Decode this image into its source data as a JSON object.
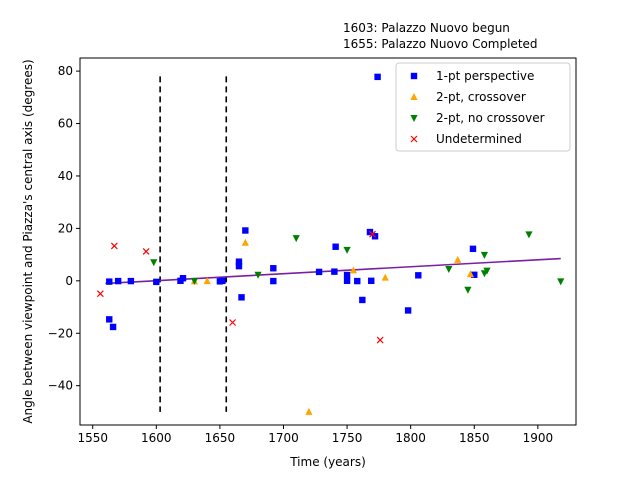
{
  "chart_data": {
    "type": "scatter",
    "annotations": [
      "1603: Palazzo Nuovo begun",
      "1655: Palazzo Nuovo Completed"
    ],
    "xlabel": "Time (years)",
    "ylabel": "Angle between viewpoint and Piazza's central axis (degrees)",
    "xlim": [
      1540,
      1930
    ],
    "ylim": [
      -55,
      85
    ],
    "xticks": [
      1550,
      1600,
      1650,
      1700,
      1750,
      1800,
      1850,
      1900
    ],
    "yticks": [
      -40,
      -20,
      0,
      20,
      40,
      60,
      80
    ],
    "grid": false,
    "legend_position": "top-right",
    "vlines": [
      1603,
      1655
    ],
    "trendline": {
      "x": [
        1560,
        1918
      ],
      "y": [
        -1.0,
        8.5
      ],
      "color": "#7b1fa2"
    },
    "series": [
      {
        "name": "1-pt perspective",
        "marker": "square",
        "color": "#0000ff",
        "points": [
          [
            1563,
            -14.7
          ],
          [
            1563,
            -0.3
          ],
          [
            1566,
            -17.6
          ],
          [
            1570,
            -0.1
          ],
          [
            1580,
            -0.1
          ],
          [
            1600,
            -0.4
          ],
          [
            1619,
            0.0
          ],
          [
            1621,
            1.0
          ],
          [
            1650,
            -0.2
          ],
          [
            1652,
            0.0
          ],
          [
            1665,
            5.6
          ],
          [
            1665,
            7.3
          ],
          [
            1667,
            -6.3
          ],
          [
            1670,
            19.2
          ],
          [
            1692,
            4.8
          ],
          [
            1692,
            -0.1
          ],
          [
            1728,
            3.4
          ],
          [
            1740,
            3.5
          ],
          [
            1741,
            13.0
          ],
          [
            1750,
            0.0
          ],
          [
            1750,
            2.2
          ],
          [
            1758,
            -0.1
          ],
          [
            1762,
            -7.3
          ],
          [
            1768,
            18.6
          ],
          [
            1769,
            0.0
          ],
          [
            1772,
            17.0
          ],
          [
            1774,
            77.8
          ],
          [
            1798,
            -11.3
          ],
          [
            1806,
            2.1
          ],
          [
            1849,
            12.2
          ],
          [
            1850,
            2.3
          ]
        ]
      },
      {
        "name": "2-pt, crossover",
        "marker": "triangle-up",
        "color": "#ffa500",
        "points": [
          [
            1630,
            -0.2
          ],
          [
            1640,
            -0.1
          ],
          [
            1670,
            14.5
          ],
          [
            1720,
            -50.0
          ],
          [
            1755,
            4.0
          ],
          [
            1780,
            1.2
          ],
          [
            1837,
            8.0
          ],
          [
            1847,
            2.5
          ]
        ]
      },
      {
        "name": "2-pt, no crossover",
        "marker": "triangle-down",
        "color": "#008000",
        "points": [
          [
            1598,
            7.1
          ],
          [
            1630,
            0.0
          ],
          [
            1680,
            2.3
          ],
          [
            1710,
            16.3
          ],
          [
            1750,
            11.8
          ],
          [
            1830,
            4.5
          ],
          [
            1845,
            -3.4
          ],
          [
            1858,
            9.9
          ],
          [
            1858,
            2.9
          ],
          [
            1860,
            3.9
          ],
          [
            1893,
            17.7
          ],
          [
            1918,
            -0.2
          ]
        ]
      },
      {
        "name": "Undetermined",
        "marker": "x",
        "color": "#ff0000",
        "points": [
          [
            1556,
            -4.9
          ],
          [
            1567,
            13.3
          ],
          [
            1592,
            11.2
          ],
          [
            1660,
            -15.9
          ],
          [
            1770,
            17.8
          ],
          [
            1776,
            -22.6
          ]
        ]
      }
    ]
  }
}
